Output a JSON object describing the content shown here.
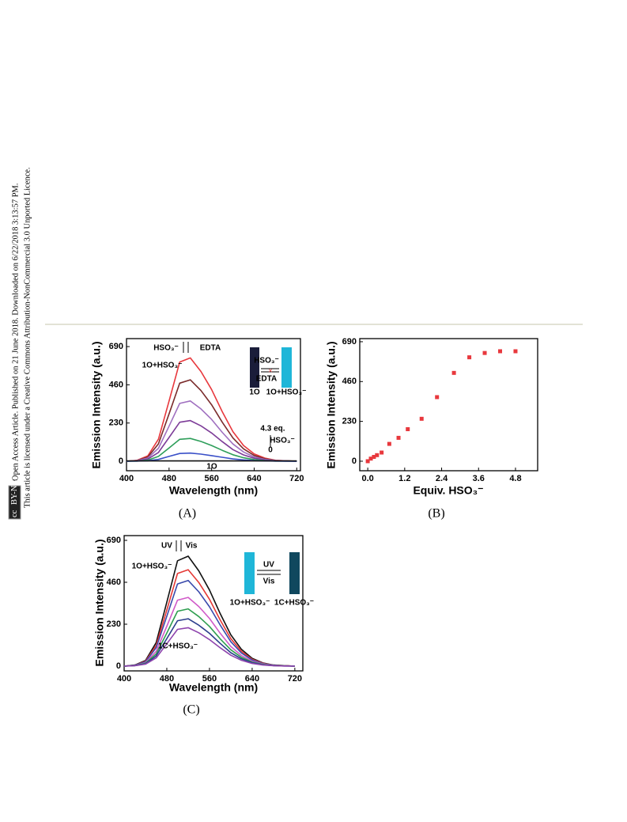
{
  "side_notice": [
    "Open Access Article. Published on 21 June 2018. Downloaded on 6/22/2018 3:13:57 PM.",
    "This article is licensed under a Creative Commons Attribution-NonCommercial 3.0 Unported Licence."
  ],
  "license_badge": [
    "cc",
    "BY-NC"
  ],
  "chart_data": [
    {
      "type": "line",
      "caption": "(A)",
      "x_label": "Wavelength (nm)",
      "y_label": "Emission Intensity (a.u.)",
      "x": [
        400,
        420,
        440,
        460,
        480,
        500,
        520,
        540,
        560,
        580,
        600,
        620,
        640,
        660,
        680,
        700,
        720
      ],
      "series": [
        {
          "color": "#e8383d",
          "values": [
            0,
            6,
            32,
            133,
            362,
            597,
            622,
            540,
            432,
            298,
            178,
            95,
            44,
            19,
            6,
            3,
            0
          ]
        },
        {
          "color": "#7a2b2b",
          "values": [
            0,
            5,
            25,
            105,
            285,
            470,
            490,
            425,
            340,
            235,
            140,
            75,
            35,
            15,
            5,
            3,
            0
          ]
        },
        {
          "color": "#a070c0",
          "values": [
            0,
            4,
            19,
            78,
            211,
            348,
            363,
            315,
            252,
            174,
            104,
            56,
            26,
            11,
            4,
            2,
            0
          ]
        },
        {
          "color": "#7d3c98",
          "values": [
            0,
            3,
            13,
            53,
            143,
            235,
            245,
            213,
            170,
            118,
            70,
            38,
            18,
            8,
            3,
            1,
            0
          ]
        },
        {
          "color": "#2e9e5a",
          "values": [
            0,
            1,
            7,
            29,
            80,
            132,
            137,
            119,
            95,
            66,
            39,
            21,
            10,
            4,
            1,
            1,
            0
          ]
        },
        {
          "color": "#3a50c8",
          "values": [
            0,
            1,
            3,
            11,
            29,
            47,
            49,
            43,
            34,
            24,
            14,
            8,
            4,
            2,
            1,
            0,
            0
          ]
        },
        {
          "color": "#111111",
          "values": [
            2,
            2,
            2,
            2,
            2,
            2,
            2,
            2,
            2,
            2,
            2,
            2,
            2,
            2,
            2,
            2,
            2
          ]
        }
      ],
      "xlim": [
        400,
        727
      ],
      "xticks": [
        400,
        480,
        560,
        640,
        720
      ],
      "ylim": [
        -57,
        738
      ],
      "yticks": [
        0,
        230,
        460,
        690
      ],
      "annotations": [
        "HSO₃⁻",
        "EDTA",
        "1O+HSO₃⁻",
        "4.3 eq.",
        "HSO₃⁻",
        "0",
        "1O"
      ],
      "inset_labels": [
        "HSO₃⁻",
        "EDTA",
        "1O",
        "1O+HSO₃⁻"
      ]
    },
    {
      "type": "scatter",
      "caption": "(B)",
      "x_label": "Equiv. HSO₃⁻",
      "y_label": "Emission Intensity (a.u.)",
      "x": [
        0,
        0.1,
        0.2,
        0.3,
        0.45,
        0.7,
        1.0,
        1.3,
        1.75,
        2.25,
        2.8,
        3.3,
        3.8,
        4.3,
        4.8
      ],
      "values": [
        0,
        15,
        25,
        35,
        50,
        100,
        135,
        185,
        245,
        370,
        510,
        600,
        625,
        635,
        635
      ],
      "color": "#e8383d",
      "xlim": [
        -0.26,
        5.52
      ],
      "xticks": [
        {
          "value": 0,
          "label": "0.0"
        },
        1.2,
        2.4,
        3.6,
        4.8
      ],
      "ylim": [
        -55,
        708
      ],
      "yticks": [
        0,
        230,
        460,
        690
      ]
    },
    {
      "type": "line",
      "caption": "(C)",
      "x_label": "Wavelength (nm)",
      "y_label": "Emission Intensity (a.u.)",
      "x": [
        400,
        420,
        440,
        460,
        480,
        500,
        520,
        540,
        560,
        580,
        600,
        620,
        640,
        660,
        680,
        700,
        720
      ],
      "series": [
        {
          "color": "#111111",
          "values": [
            0,
            6,
            31,
            129,
            351,
            578,
            603,
            523,
            418,
            289,
            172,
            92,
            43,
            18,
            6,
            3,
            0
          ]
        },
        {
          "color": "#e53935",
          "values": [
            0,
            5,
            27,
            113,
            308,
            508,
            529,
            459,
            367,
            254,
            151,
            81,
            38,
            16,
            5,
            3,
            0
          ]
        },
        {
          "color": "#3949ab",
          "values": [
            0,
            5,
            24,
            101,
            274,
            451,
            470,
            408,
            326,
            226,
            134,
            72,
            34,
            14,
            5,
            2,
            0
          ]
        },
        {
          "color": "#d05ac8",
          "values": [
            0,
            4,
            19,
            81,
            219,
            362,
            377,
            327,
            262,
            181,
            108,
            58,
            27,
            12,
            4,
            2,
            0
          ]
        },
        {
          "color": "#2e9e4f",
          "values": [
            0,
            3,
            16,
            67,
            182,
            301,
            314,
            272,
            218,
            150,
            90,
            48,
            22,
            10,
            3,
            2,
            0
          ]
        },
        {
          "color": "#2c3e8c",
          "values": [
            0,
            3,
            13,
            56,
            151,
            249,
            260,
            225,
            180,
            125,
            74,
            40,
            19,
            8,
            3,
            1,
            0
          ]
        },
        {
          "color": "#8e44ad",
          "values": [
            0,
            2,
            11,
            45,
            123,
            202,
            211,
            183,
            146,
            101,
            60,
            32,
            15,
            6,
            2,
            1,
            0
          ]
        }
      ],
      "xlim": [
        400,
        735
      ],
      "xticks": [
        400,
        480,
        560,
        640,
        720
      ],
      "ylim": [
        -26,
        716
      ],
      "yticks": [
        0,
        230,
        460,
        690
      ],
      "annotations": [
        "UV",
        "Vis",
        "1O+HSO₃⁻",
        "1C+HSO₃⁻"
      ],
      "inset_labels": [
        "UV",
        "Vis",
        "1O+HSO₃⁻",
        "1C+HSO₃⁻"
      ]
    }
  ]
}
